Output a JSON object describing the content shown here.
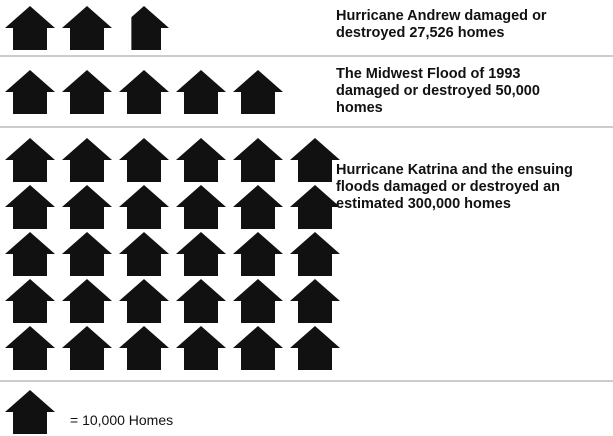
{
  "chart_data": {
    "type": "pictograph",
    "categories": [
      "Hurricane Andrew damaged or destroyed 27,526 homes",
      "The Midwest Flood of 1993 damaged or destroyed 50,000 homes",
      "Hurricane Katrina and the ensuing floods damaged or destroyed an estimated 300,000 homes"
    ],
    "values": [
      27526,
      50000,
      300000
    ],
    "unit": 10000,
    "legend_label": "= 10,000 Homes",
    "color": "#111111"
  }
}
